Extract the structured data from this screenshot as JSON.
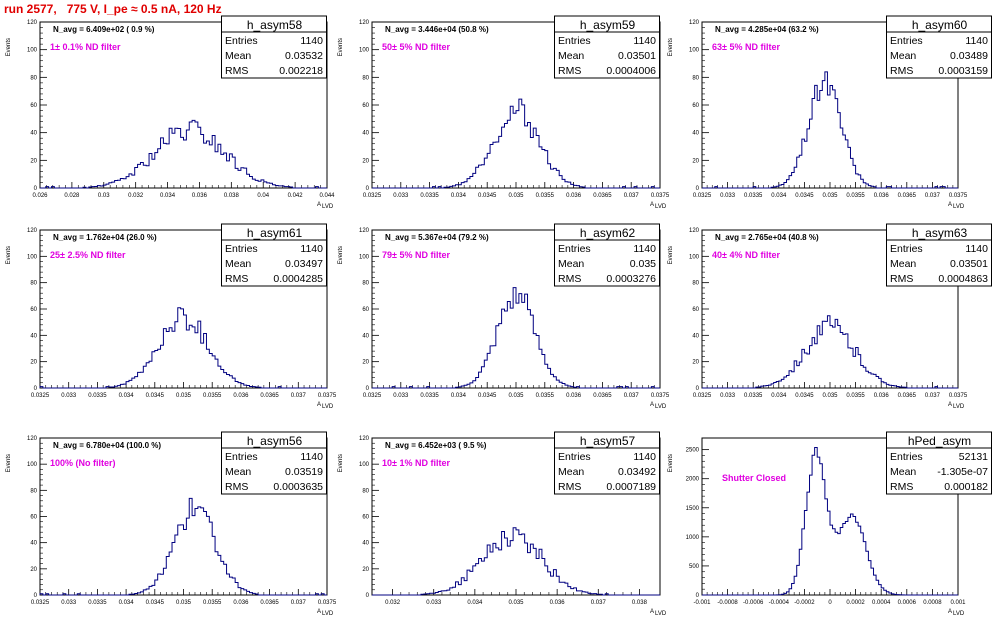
{
  "title": "run 2577,   775 V, I_pe ≈ 0.5 nA, 120 Hz",
  "stat_labels": {
    "entries": "Entries",
    "mean": "Mean",
    "rms": "RMS"
  },
  "ylabel": "Events",
  "xlabel_main": "A",
  "xlabel_sub": "LVD",
  "colors": {
    "line": "#000080",
    "filter_text": "#e000e0",
    "title": "#e00000"
  },
  "chart_data": [
    {
      "type": "histogram",
      "name": "h_asym58",
      "navg": "N_avg = 6.409e+02 ( 0.9 %)",
      "filter": "1± 0.1% ND filter",
      "entries": "1140",
      "mean": "0.03532",
      "rms": "0.002218",
      "xlim": [
        0.026,
        0.044
      ],
      "ylim": [
        0,
        120
      ],
      "xticks": [
        "0.026",
        "0.028",
        "0.03",
        "0.032",
        "0.034",
        "0.036",
        "0.038",
        "0.04",
        "0.042",
        "0.044"
      ],
      "yticks": [
        "0",
        "20",
        "40",
        "60",
        "80",
        "100",
        "120"
      ],
      "peak": {
        "center": 0.0354,
        "sigma": 0.0022,
        "height": 42,
        "noise": 0.22,
        "seed": 58
      }
    },
    {
      "type": "histogram",
      "name": "h_asym59",
      "navg": "N_avg = 3.446e+04 (50.8 %)",
      "filter": "50± 5% ND filter",
      "entries": "1140",
      "mean": "0.03501",
      "rms": "0.0004006",
      "xlim": [
        0.0325,
        0.0375
      ],
      "xticks": [
        "0.0325",
        "0.033",
        "0.0335",
        "0.034",
        "0.0345",
        "0.035",
        "0.0355",
        "0.036",
        "0.0365",
        "0.037",
        "0.0375"
      ],
      "yticks": [
        "0",
        "20",
        "40",
        "60",
        "80",
        "100",
        "120"
      ],
      "ylim": [
        0,
        120
      ],
      "peak": {
        "center": 0.035,
        "sigma": 0.0004,
        "height": 56,
        "noise": 0.18,
        "seed": 59
      }
    },
    {
      "type": "histogram",
      "name": "h_asym60",
      "navg": "N_avg = 4.285e+04 (63.2 %)",
      "filter": "63± 5% ND filter",
      "entries": "1140",
      "mean": "0.03489",
      "rms": "0.0003159",
      "xlim": [
        0.0325,
        0.0375
      ],
      "xticks": [
        "0.0325",
        "0.033",
        "0.0335",
        "0.034",
        "0.0345",
        "0.035",
        "0.0355",
        "0.036",
        "0.0365",
        "0.037",
        "0.0375"
      ],
      "yticks": [
        "0",
        "20",
        "40",
        "60",
        "80",
        "100",
        "120"
      ],
      "ylim": [
        0,
        120
      ],
      "peak": {
        "center": 0.0349,
        "sigma": 0.00032,
        "height": 78,
        "noise": 0.15,
        "seed": 60
      }
    },
    {
      "type": "histogram",
      "name": "h_asym61",
      "navg": "N_avg = 1.762e+04 (26.0 %)",
      "filter": "25± 2.5% ND filter",
      "entries": "1140",
      "mean": "0.03497",
      "rms": "0.0004285",
      "xlim": [
        0.0325,
        0.0375
      ],
      "xticks": [
        "0.0325",
        "0.033",
        "0.0335",
        "0.034",
        "0.0345",
        "0.035",
        "0.0355",
        "0.036",
        "0.0365",
        "0.037",
        "0.0375"
      ],
      "yticks": [
        "0",
        "20",
        "40",
        "60",
        "80",
        "100",
        "120"
      ],
      "ylim": [
        0,
        120
      ],
      "peak": {
        "center": 0.035,
        "sigma": 0.00043,
        "height": 54,
        "noise": 0.18,
        "seed": 61
      }
    },
    {
      "type": "histogram",
      "name": "h_asym62",
      "navg": "N_avg = 5.367e+04 (79.2 %)",
      "filter": "79± 5% ND filter",
      "entries": "1140",
      "mean": "0.035",
      "rms": "0.0003276",
      "xlim": [
        0.0325,
        0.0375
      ],
      "xticks": [
        "0.0325",
        "0.033",
        "0.0335",
        "0.034",
        "0.0345",
        "0.035",
        "0.0355",
        "0.036",
        "0.0365",
        "0.037",
        "0.0375"
      ],
      "yticks": [
        "0",
        "20",
        "40",
        "60",
        "80",
        "100",
        "120"
      ],
      "ylim": [
        0,
        120
      ],
      "peak": {
        "center": 0.035,
        "sigma": 0.00033,
        "height": 72,
        "noise": 0.15,
        "seed": 62
      }
    },
    {
      "type": "histogram",
      "name": "h_asym63",
      "navg": "N_avg = 2.765e+04 (40.8 %)",
      "filter": "40± 4% ND filter",
      "entries": "1140",
      "mean": "0.03501",
      "rms": "0.0004863",
      "xlim": [
        0.0325,
        0.0375
      ],
      "xticks": [
        "0.0325",
        "0.033",
        "0.0335",
        "0.034",
        "0.0345",
        "0.035",
        "0.0355",
        "0.036",
        "0.0365",
        "0.037",
        "0.0375"
      ],
      "yticks": [
        "0",
        "20",
        "40",
        "60",
        "80",
        "100",
        "120"
      ],
      "ylim": [
        0,
        120
      ],
      "peak": {
        "center": 0.035,
        "sigma": 0.00049,
        "height": 46,
        "noise": 0.2,
        "seed": 63
      }
    },
    {
      "type": "histogram",
      "name": "h_asym56",
      "navg": "N_avg = 6.780e+04 (100.0 %)",
      "filter": "100% (No filter)",
      "entries": "1140",
      "mean": "0.03519",
      "rms": "0.0003635",
      "xlim": [
        0.0325,
        0.0375
      ],
      "xticks": [
        "0.0325",
        "0.033",
        "0.0335",
        "0.034",
        "0.0345",
        "0.035",
        "0.0355",
        "0.036",
        "0.0365",
        "0.037",
        "0.0375"
      ],
      "yticks": [
        "0",
        "20",
        "40",
        "60",
        "80",
        "100",
        "120"
      ],
      "ylim": [
        0,
        120
      ],
      "peak": {
        "center": 0.0352,
        "sigma": 0.00036,
        "height": 66,
        "noise": 0.15,
        "seed": 56
      }
    },
    {
      "type": "histogram",
      "name": "h_asym57",
      "navg": "N_avg = 6.452e+03 ( 9.5 %)",
      "filter": "10± 1% ND filter",
      "entries": "1140",
      "mean": "0.03492",
      "rms": "0.0007189",
      "xlim": [
        0.0315,
        0.0385
      ],
      "xticks": [
        "0.032",
        "0.033",
        "0.034",
        "0.035",
        "0.036",
        "0.037",
        "0.038"
      ],
      "yticks": [
        "0",
        "20",
        "40",
        "60",
        "80",
        "100",
        "120"
      ],
      "ylim": [
        0,
        120
      ],
      "peak": {
        "center": 0.0349,
        "sigma": 0.00072,
        "height": 46,
        "noise": 0.22,
        "seed": 57
      }
    },
    {
      "type": "histogram",
      "name": "hPed_asym",
      "navg": "",
      "filter": "Shutter Closed",
      "entries": "52131",
      "mean": "-1.305e-07",
      "rms": "0.000182",
      "xlim": [
        -0.001,
        0.001
      ],
      "xticks": [
        "-0.001",
        "-0.0008",
        "-0.0006",
        "-0.0004",
        "-0.0002",
        "0",
        "0.0002",
        "0.0004",
        "0.0006",
        "0.0008",
        "0.001"
      ],
      "yticks": [
        "0",
        "500",
        "1000",
        "1500",
        "2000",
        "2500"
      ],
      "ylim": [
        0,
        2700
      ],
      "double_peak": {
        "c1": -0.00011,
        "s1": 8e-05,
        "h1": 2400,
        "c2": 0.00017,
        "s2": 0.00011,
        "h2": 1350,
        "noise": 0.04,
        "seed": 99
      }
    }
  ]
}
